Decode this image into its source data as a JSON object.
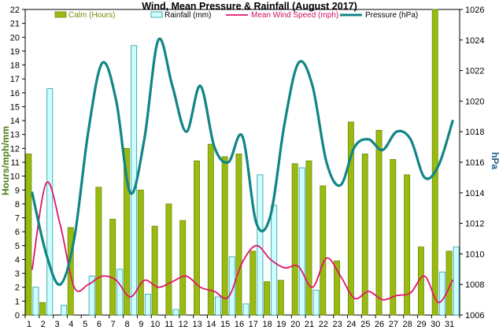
{
  "chart_data": {
    "type": "bar",
    "title": "Wind, Mean Pressure & Rainfall (August 2017)",
    "x": [
      1,
      2,
      3,
      4,
      5,
      6,
      7,
      8,
      9,
      10,
      11,
      12,
      13,
      14,
      15,
      16,
      17,
      18,
      19,
      20,
      21,
      22,
      23,
      24,
      25,
      26,
      27,
      28,
      29,
      30,
      31
    ],
    "x_tick_labels": [
      "1",
      "2",
      "3",
      "4",
      "5",
      "6",
      "7",
      "8",
      "9",
      "10",
      "11",
      "12",
      "13",
      "14",
      "15",
      "16",
      "17",
      "18",
      "19",
      "20",
      "21",
      "22",
      "23",
      "24",
      "25",
      "26",
      "27",
      "28",
      "29",
      "30",
      "31"
    ],
    "ylabel": "Hours/mph/mm",
    "ylim": [
      0,
      22
    ],
    "y_ticks": [
      0,
      1,
      2,
      3,
      4,
      5,
      6,
      7,
      8,
      9,
      10,
      11,
      12,
      13,
      14,
      15,
      16,
      17,
      18,
      19,
      20,
      21,
      22
    ],
    "y2label": "hPa",
    "y2lim": [
      1006,
      1026
    ],
    "y2_ticks": [
      1006,
      1008,
      1010,
      1012,
      1014,
      1016,
      1018,
      1020,
      1022,
      1024,
      1026
    ],
    "legend_placement": "top",
    "grid": false,
    "series": [
      {
        "name": "Calm (Hours)",
        "kind": "bar",
        "axis": "left",
        "color": "#99bb11",
        "values": [
          11.6,
          0.9,
          0,
          6.3,
          0,
          9.2,
          6.9,
          12.0,
          9.0,
          6.4,
          8.0,
          6.8,
          11.1,
          12.3,
          11.4,
          11.6,
          4.6,
          2.4,
          2.5,
          10.9,
          11.1,
          9.3,
          3.9,
          13.9,
          11.6,
          13.3,
          11.2,
          10.1,
          4.9,
          22,
          4.6
        ]
      },
      {
        "name": "Rainfall (mm)",
        "kind": "bar",
        "axis": "left",
        "color": "#ccffff",
        "values": [
          2.0,
          16.3,
          0.7,
          0,
          2.8,
          0,
          3.3,
          19.4,
          1.5,
          0,
          0.4,
          0,
          0,
          1.3,
          4.2,
          0.8,
          10.1,
          7.9,
          0,
          10.6,
          1.8,
          0,
          0,
          0,
          0,
          0,
          0,
          0,
          0,
          3.1,
          4.9
        ]
      },
      {
        "name": "Mean Wind Speed (mph)",
        "kind": "line",
        "axis": "left",
        "color": "#e0156a",
        "values": [
          3.3,
          9.5,
          6.5,
          2.0,
          2.2,
          2.8,
          2.5,
          1.3,
          2.5,
          2.0,
          2.4,
          2.8,
          2.0,
          1.7,
          1.3,
          3.8,
          5.0,
          4.0,
          3.4,
          3.5,
          2.0,
          4.1,
          2.8,
          1.2,
          1.7,
          1.1,
          1.4,
          1.6,
          2.8,
          0.9,
          2.5
        ]
      },
      {
        "name": "Pressure (hPa)",
        "kind": "line",
        "axis": "right",
        "color": "#118585",
        "values": [
          1014.0,
          1010.0,
          1008.0,
          1011.0,
          1018.0,
          1022.5,
          1020.0,
          1014.0,
          1017.5,
          1024.0,
          1021.0,
          1018.0,
          1021.0,
          1017.0,
          1016.0,
          1017.7,
          1012.0,
          1012.5,
          1018.5,
          1022.5,
          1021.0,
          1016.0,
          1014.5,
          1017.0,
          1017.5,
          1016.8,
          1018.0,
          1017.5,
          1015.0,
          1015.8,
          1018.7
        ]
      }
    ]
  }
}
